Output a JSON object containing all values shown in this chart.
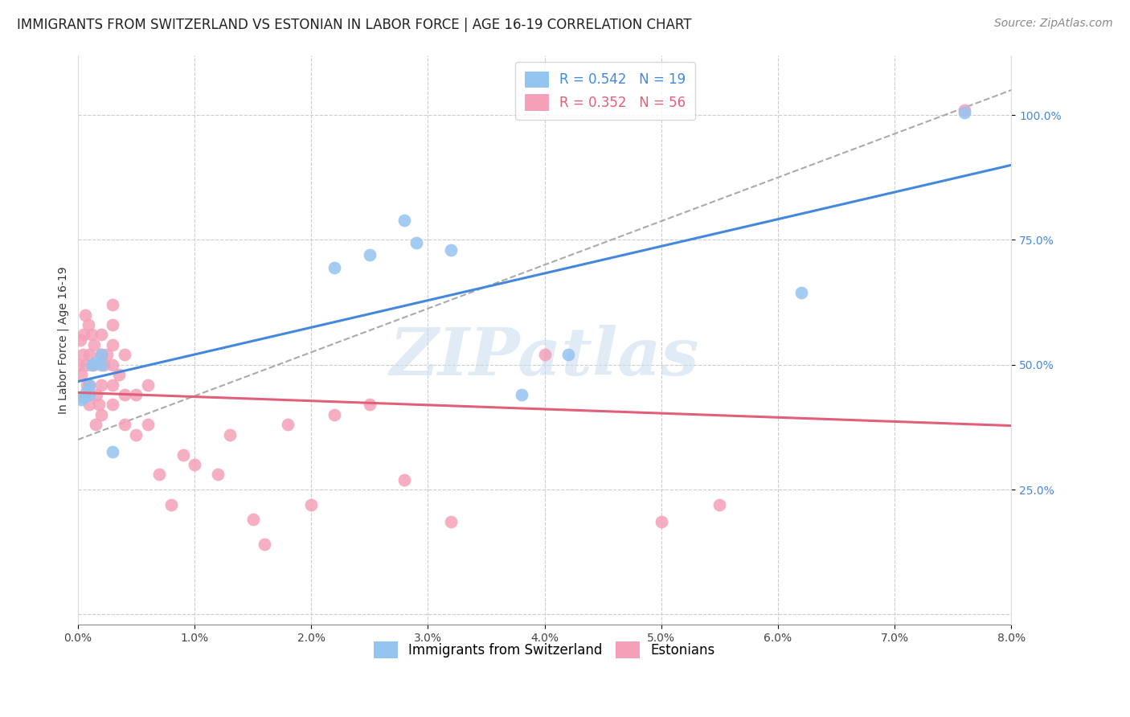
{
  "title": "IMMIGRANTS FROM SWITZERLAND VS ESTONIAN IN LABOR FORCE | AGE 16-19 CORRELATION CHART",
  "source": "Source: ZipAtlas.com",
  "ylabel": "In Labor Force | Age 16-19",
  "xlim": [
    0.0,
    0.08
  ],
  "ylim": [
    -0.02,
    1.12
  ],
  "xticks": [
    0.0,
    0.01,
    0.02,
    0.03,
    0.04,
    0.05,
    0.06,
    0.07,
    0.08
  ],
  "xticklabels": [
    "0.0%",
    "1.0%",
    "2.0%",
    "3.0%",
    "4.0%",
    "5.0%",
    "6.0%",
    "7.0%",
    "8.0%"
  ],
  "yticks_right": [
    0.25,
    0.5,
    0.75,
    1.0
  ],
  "yticklabels_right": [
    "25.0%",
    "50.0%",
    "75.0%",
    "100.0%"
  ],
  "swiss_color": "#94C4F0",
  "swiss_line_color": "#4488DD",
  "estonian_color": "#F4A0B8",
  "estonian_line_color": "#E0607A",
  "legend_label_swiss": "R = 0.542   N = 19",
  "legend_label_estonian": "R = 0.352   N = 56",
  "legend_label_swiss_name": "Immigrants from Switzerland",
  "legend_label_estonian_name": "Estonians",
  "watermark": "ZIPatlas",
  "background_color": "#ffffff",
  "grid_color": "#cccccc",
  "swiss_x": [
    0.0003,
    0.0005,
    0.0007,
    0.001,
    0.001,
    0.0012,
    0.0015,
    0.002,
    0.002,
    0.003,
    0.022,
    0.025,
    0.028,
    0.029,
    0.032,
    0.038,
    0.042,
    0.062,
    0.076
  ],
  "swiss_y": [
    0.43,
    0.435,
    0.445,
    0.44,
    0.46,
    0.5,
    0.505,
    0.5,
    0.52,
    0.325,
    0.695,
    0.72,
    0.79,
    0.745,
    0.73,
    0.44,
    0.52,
    0.645,
    1.005
  ],
  "estonian_x": [
    0.0001,
    0.0002,
    0.0003,
    0.0004,
    0.0005,
    0.0006,
    0.0007,
    0.0008,
    0.0009,
    0.001,
    0.001,
    0.001,
    0.0012,
    0.0013,
    0.0014,
    0.0015,
    0.0016,
    0.0018,
    0.002,
    0.002,
    0.002,
    0.002,
    0.0022,
    0.0025,
    0.003,
    0.003,
    0.003,
    0.003,
    0.003,
    0.003,
    0.0035,
    0.004,
    0.004,
    0.004,
    0.005,
    0.005,
    0.006,
    0.006,
    0.007,
    0.008,
    0.009,
    0.01,
    0.012,
    0.013,
    0.015,
    0.016,
    0.018,
    0.02,
    0.022,
    0.025,
    0.028,
    0.032,
    0.04,
    0.05,
    0.055,
    0.076
  ],
  "estonian_y": [
    0.5,
    0.55,
    0.48,
    0.52,
    0.56,
    0.6,
    0.5,
    0.46,
    0.58,
    0.42,
    0.46,
    0.52,
    0.56,
    0.5,
    0.54,
    0.38,
    0.44,
    0.42,
    0.4,
    0.46,
    0.52,
    0.56,
    0.5,
    0.52,
    0.42,
    0.46,
    0.5,
    0.54,
    0.58,
    0.62,
    0.48,
    0.38,
    0.44,
    0.52,
    0.36,
    0.44,
    0.38,
    0.46,
    0.28,
    0.22,
    0.32,
    0.3,
    0.28,
    0.36,
    0.19,
    0.14,
    0.38,
    0.22,
    0.4,
    0.42,
    0.27,
    0.185,
    0.52,
    0.185,
    0.22,
    1.01
  ],
  "title_fontsize": 12,
  "axis_label_fontsize": 10,
  "tick_fontsize": 10,
  "legend_fontsize": 12,
  "watermark_fontsize": 60,
  "source_fontsize": 10,
  "ref_line_x": [
    0.0,
    0.08
  ],
  "ref_line_y": [
    0.35,
    1.05
  ]
}
